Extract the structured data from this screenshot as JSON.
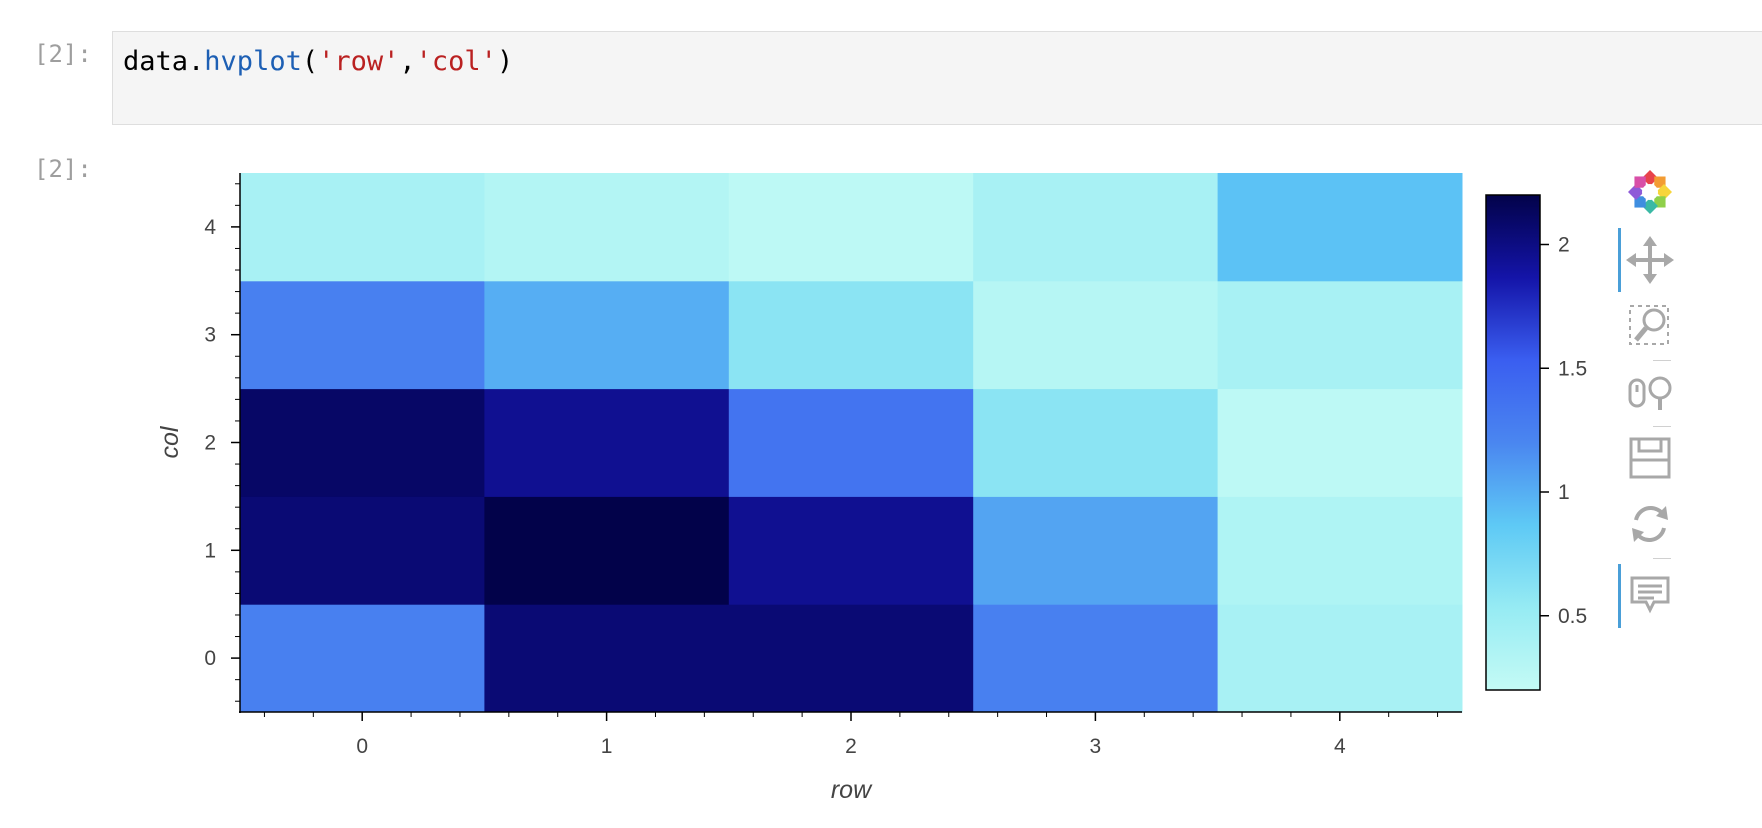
{
  "cell": {
    "input_prompt": "[2]:",
    "output_prompt": "[2]:",
    "code": {
      "obj": "data",
      "dot": ".",
      "func": "hvplot",
      "open": "(",
      "arg1": "'row'",
      "comma": ",",
      "arg2": "'col'",
      "close": ")"
    }
  },
  "chart_data": {
    "type": "heatmap",
    "x_categories": [
      "0",
      "1",
      "2",
      "3",
      "4"
    ],
    "y_categories": [
      "0",
      "1",
      "2",
      "3",
      "4"
    ],
    "xlabel": "row",
    "ylabel": "col",
    "values": [
      [
        1.25,
        2.05,
        2.05,
        1.25,
        0.4
      ],
      [
        2.05,
        2.2,
        1.95,
        1.05,
        0.35
      ],
      [
        2.1,
        1.95,
        1.35,
        0.6,
        0.25
      ],
      [
        1.25,
        1.0,
        0.6,
        0.3,
        0.4
      ],
      [
        0.4,
        0.32,
        0.25,
        0.4,
        0.9
      ]
    ],
    "colorbar": {
      "range": [
        0.2,
        2.2
      ],
      "ticks": [
        "0.5",
        "1",
        "1.5",
        "2"
      ],
      "tick_values": [
        0.5,
        1,
        1.5,
        2
      ],
      "colormap": [
        "#c4fbf5",
        "#96ebf3",
        "#5ec9f5",
        "#4a86f0",
        "#3a5ef0",
        "#1414a8",
        "#02024a"
      ]
    },
    "grid": false
  },
  "toolbar": {
    "tools": [
      "bokeh-logo-icon",
      "pan-icon",
      "box-zoom-icon",
      "wheel-zoom-icon",
      "save-icon",
      "reset-icon",
      "hover-icon"
    ]
  }
}
